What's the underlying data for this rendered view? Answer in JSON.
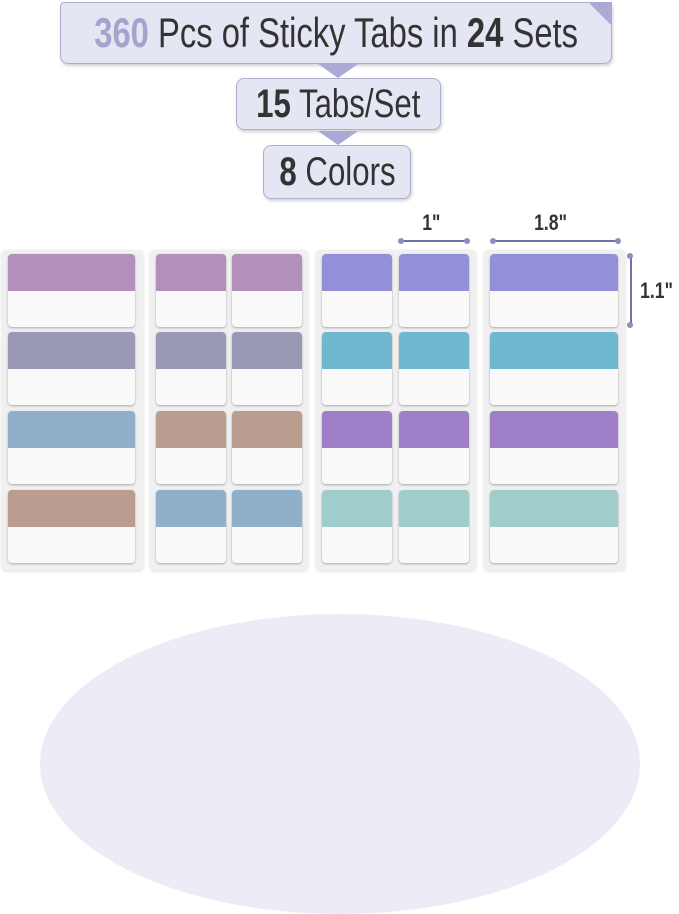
{
  "banner": {
    "count": "360",
    "middle": "Pcs of Sticky Tabs in",
    "sets_count": "24",
    "sets_label": "Sets"
  },
  "per_set": {
    "count": "15",
    "label": "Tabs/Set"
  },
  "colors": {
    "count": "8",
    "label": "Colors"
  },
  "dimensions": {
    "small_width": "1\"",
    "large_width": "1.8\"",
    "height": "1.1\""
  },
  "palette": {
    "set1": [
      "#b38fbb",
      "#9a99b5",
      "#8fafca",
      "#bb9d90"
    ],
    "set2": [
      "#b38fbb",
      "#9a99b5",
      "#bb9d90",
      "#8fafca"
    ],
    "set3": [
      "#9490d8",
      "#70b8cf",
      "#9f80c8",
      "#a0cccc"
    ],
    "set4": [
      "#9490d8",
      "#70b8cf",
      "#9f80c8",
      "#a0cccc"
    ],
    "accent": "#a9abd6",
    "count_color": "#a3a5cc"
  }
}
